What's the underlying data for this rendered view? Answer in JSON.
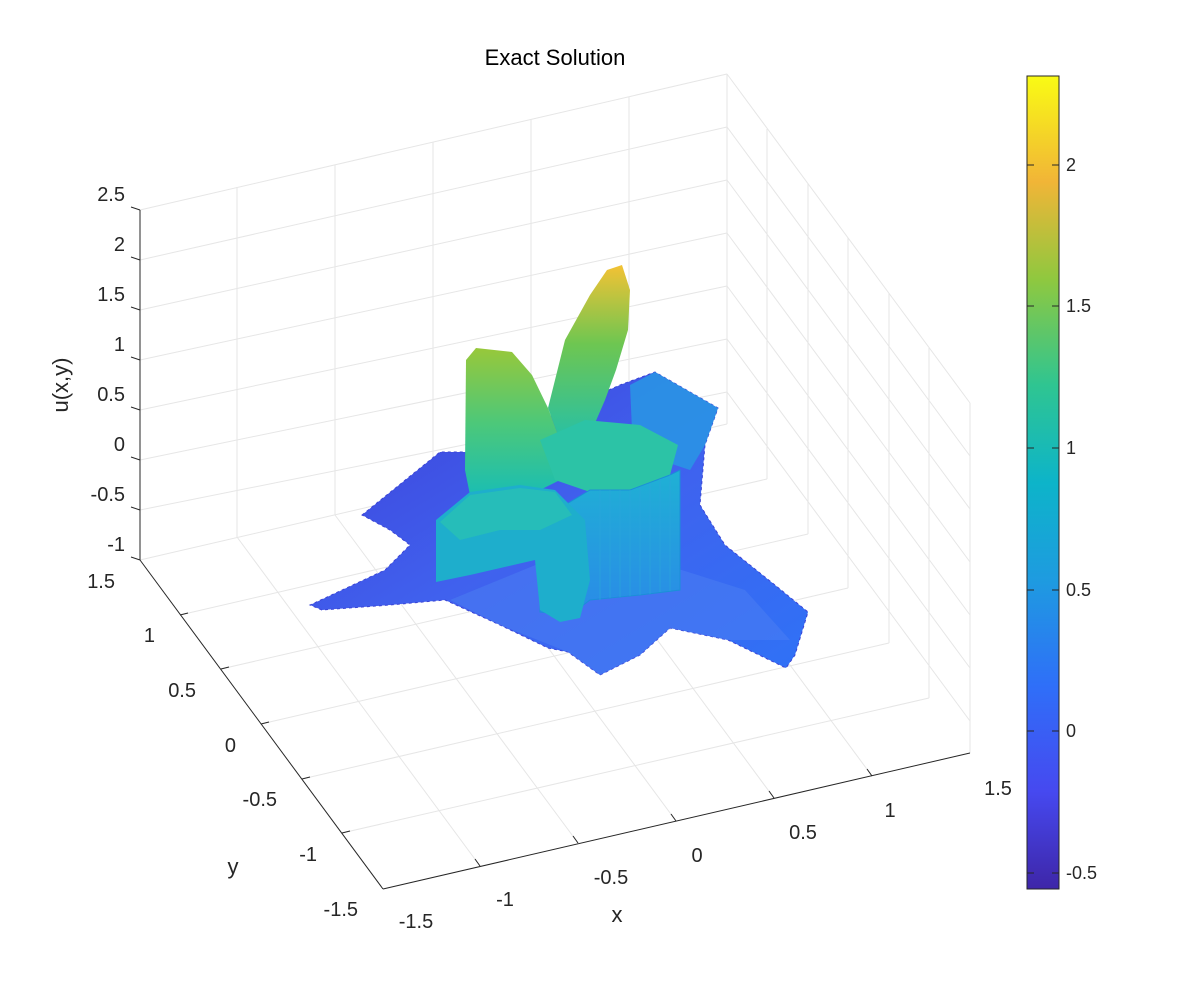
{
  "chart_data": {
    "type": "surface3d",
    "title": "Exact Solution",
    "xlabel": "x",
    "ylabel": "y",
    "zlabel": "u(x,y)",
    "xlim": [
      -1.5,
      1.5
    ],
    "ylim": [
      -1.5,
      1.5
    ],
    "zlim": [
      -1,
      2.5
    ],
    "x_ticks": [
      "-1.5",
      "-1",
      "-0.5",
      "0",
      "0.5",
      "1",
      "1.5"
    ],
    "y_ticks": [
      "-1.5",
      "-1",
      "-0.5",
      "0",
      "0.5",
      "1",
      "1.5"
    ],
    "z_ticks": [
      "-1",
      "-0.5",
      "0",
      "0.5",
      "1",
      "1.5",
      "2",
      "2.5"
    ],
    "grid": true,
    "colormap": "parula",
    "colorbar": {
      "range": [
        -0.58,
        2.3
      ],
      "ticks": [
        "-0.5",
        "0",
        "0.5",
        "1",
        "1.5",
        "2"
      ],
      "placement": "right"
    }
  }
}
